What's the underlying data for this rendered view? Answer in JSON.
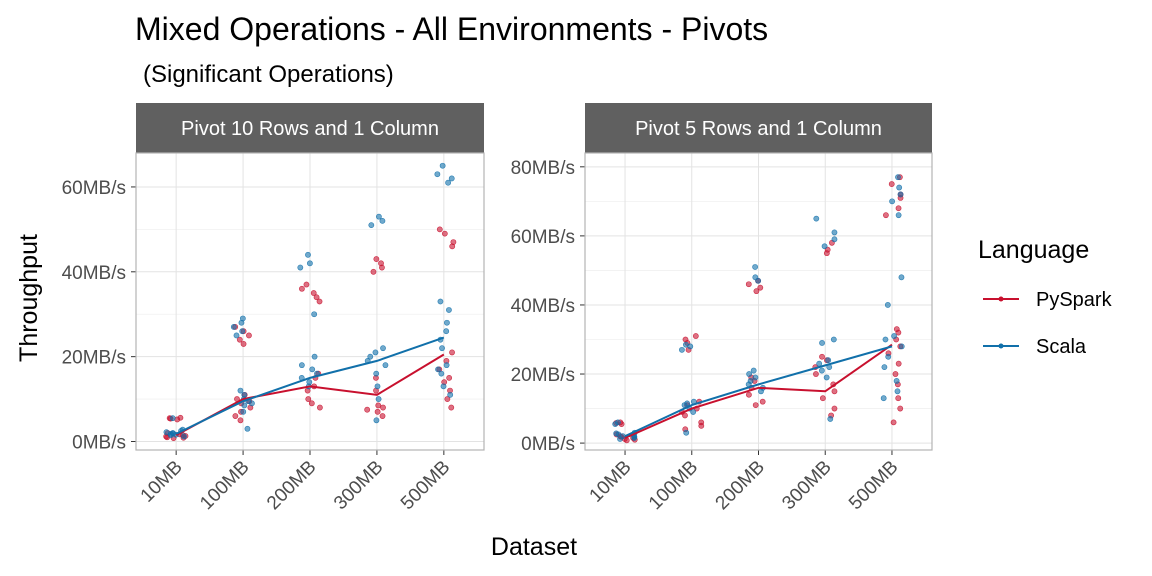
{
  "title": "Mixed Operations - All Environments - Pivots",
  "subtitle": "(Significant Operations)",
  "xlabel": "Dataset",
  "ylabel": "Throughput",
  "legend": {
    "title": "Language",
    "entries": [
      {
        "name": "PySpark",
        "color": "#C8102E"
      },
      {
        "name": "Scala",
        "color": "#1170AA"
      }
    ],
    "placement": "right"
  },
  "chart_data": [
    {
      "type": "scatter",
      "facet": "Pivot 10 Rows and 1 Column",
      "categories": [
        "10MB",
        "100MB",
        "200MB",
        "300MB",
        "500MB"
      ],
      "ylim": [
        -2,
        68
      ],
      "yticks": [
        0,
        20,
        40,
        60
      ],
      "ytick_labels": [
        "0MB/s",
        "20MB/s",
        "40MB/s",
        "60MB/s"
      ],
      "grid": true,
      "series": [
        {
          "name": "PySpark",
          "color": "#C8102E",
          "mean_line": [
            1.5,
            10,
            13,
            11,
            20.5
          ],
          "points": [
            [
              [
                1,
                1
              ],
              [
                1.5,
                1
              ],
              [
                0.8,
                1
              ],
              [
                1.2,
                1
              ],
              [
                2,
                1
              ],
              [
                5.5,
                1
              ],
              [
                5.2,
                1
              ],
              [
                5.4,
                1
              ],
              [
                1.3,
                1
              ],
              [
                0.9,
                1
              ],
              [
                1.7,
                1
              ],
              [
                5.6,
                1
              ]
            ],
            [
              [
                9,
                1
              ],
              [
                10,
                1
              ],
              [
                8,
                1
              ],
              [
                11,
                1
              ],
              [
                9.5,
                1
              ],
              [
                6,
                1
              ],
              [
                5,
                1
              ],
              [
                7,
                1
              ],
              [
                23,
                1
              ],
              [
                24,
                1
              ],
              [
                26,
                1
              ],
              [
                27,
                1
              ],
              [
                25,
                1
              ]
            ],
            [
              [
                8,
                1
              ],
              [
                9,
                1
              ],
              [
                10,
                1
              ],
              [
                12,
                1
              ],
              [
                13,
                1
              ],
              [
                15,
                1
              ],
              [
                16,
                1
              ],
              [
                33,
                1
              ],
              [
                34,
                1
              ],
              [
                36,
                1
              ],
              [
                37,
                1
              ],
              [
                35,
                1
              ]
            ],
            [
              [
                7,
                1
              ],
              [
                8,
                1
              ],
              [
                6,
                1
              ],
              [
                7.5,
                1
              ],
              [
                8.5,
                1
              ],
              [
                12,
                1
              ],
              [
                15,
                1
              ],
              [
                40,
                1
              ],
              [
                41,
                1
              ],
              [
                42,
                1
              ],
              [
                43,
                1
              ]
            ],
            [
              [
                8,
                1
              ],
              [
                10,
                1
              ],
              [
                12,
                1
              ],
              [
                14,
                1
              ],
              [
                15,
                1
              ],
              [
                17,
                1
              ],
              [
                19,
                1
              ],
              [
                21,
                1
              ],
              [
                46,
                1
              ],
              [
                47,
                1
              ],
              [
                49,
                1
              ],
              [
                50,
                1
              ]
            ]
          ]
        },
        {
          "name": "Scala",
          "color": "#1170AA",
          "mean_line": [
            1.8,
            9.5,
            15,
            19,
            24.5
          ],
          "points": [
            [
              [
                1.5,
                1
              ],
              [
                2,
                1
              ],
              [
                2.5,
                1
              ],
              [
                1.8,
                1
              ],
              [
                1.2,
                1
              ],
              [
                2.2,
                1
              ],
              [
                2.8,
                1
              ],
              [
                1.6,
                1
              ],
              [
                5.5,
                1
              ],
              [
                1.9,
                1
              ]
            ],
            [
              [
                9,
                1
              ],
              [
                10,
                1
              ],
              [
                8.5,
                1
              ],
              [
                9.5,
                1
              ],
              [
                11,
                1
              ],
              [
                12,
                1
              ],
              [
                7,
                1
              ],
              [
                3,
                1
              ],
              [
                25,
                1
              ],
              [
                26,
                1
              ],
              [
                28,
                1
              ],
              [
                29,
                1
              ],
              [
                27,
                1
              ]
            ],
            [
              [
                13,
                1
              ],
              [
                14,
                1
              ],
              [
                15,
                1
              ],
              [
                16,
                1
              ],
              [
                17,
                1
              ],
              [
                18,
                1
              ],
              [
                20,
                1
              ],
              [
                30,
                1
              ],
              [
                41,
                1
              ],
              [
                42,
                1
              ],
              [
                44,
                1
              ]
            ],
            [
              [
                5,
                1
              ],
              [
                10,
                1
              ],
              [
                13,
                1
              ],
              [
                16,
                1
              ],
              [
                18,
                1
              ],
              [
                19,
                1
              ],
              [
                20,
                1
              ],
              [
                21,
                1
              ],
              [
                22,
                1
              ],
              [
                51,
                1
              ],
              [
                52,
                1
              ],
              [
                53,
                1
              ]
            ],
            [
              [
                11,
                1
              ],
              [
                13,
                1
              ],
              [
                16,
                1
              ],
              [
                17,
                1
              ],
              [
                18,
                1
              ],
              [
                22,
                1
              ],
              [
                24,
                1
              ],
              [
                26,
                1
              ],
              [
                28,
                1
              ],
              [
                31,
                1
              ],
              [
                33,
                1
              ],
              [
                61,
                1
              ],
              [
                62,
                1
              ],
              [
                63,
                1
              ],
              [
                65,
                1
              ]
            ]
          ]
        }
      ]
    },
    {
      "type": "scatter",
      "facet": "Pivot 5 Rows and 1 Column",
      "categories": [
        "10MB",
        "100MB",
        "200MB",
        "300MB",
        "500MB"
      ],
      "ylim": [
        -2,
        84
      ],
      "yticks": [
        0,
        20,
        40,
        60,
        80
      ],
      "ytick_labels": [
        "0MB/s",
        "20MB/s",
        "40MB/s",
        "60MB/s",
        "80MB/s"
      ],
      "grid": true,
      "series": [
        {
          "name": "PySpark",
          "color": "#C8102E",
          "mean_line": [
            1.5,
            10,
            16,
            15,
            28.5
          ],
          "points": [
            [
              [
                1,
                1
              ],
              [
                1.5,
                1
              ],
              [
                2,
                1
              ],
              [
                0.8,
                1
              ],
              [
                1.2,
                1
              ],
              [
                2.5,
                1
              ],
              [
                5.5,
                1
              ],
              [
                6,
                1
              ],
              [
                5.8,
                1
              ],
              [
                1.8,
                1
              ]
            ],
            [
              [
                8,
                1
              ],
              [
                9,
                1
              ],
              [
                10,
                1
              ],
              [
                11,
                1
              ],
              [
                12,
                1
              ],
              [
                6,
                1
              ],
              [
                5,
                1
              ],
              [
                4,
                1
              ],
              [
                27,
                1
              ],
              [
                29,
                1
              ],
              [
                30,
                1
              ],
              [
                31,
                1
              ]
            ],
            [
              [
                11,
                1
              ],
              [
                12,
                1
              ],
              [
                14,
                1
              ],
              [
                16,
                1
              ],
              [
                18,
                1
              ],
              [
                19,
                1
              ],
              [
                45,
                1
              ],
              [
                46,
                1
              ],
              [
                47,
                1
              ],
              [
                44,
                1
              ]
            ],
            [
              [
                8,
                1
              ],
              [
                10,
                1
              ],
              [
                13,
                1
              ],
              [
                15,
                1
              ],
              [
                17,
                1
              ],
              [
                20,
                1
              ],
              [
                22,
                1
              ],
              [
                24,
                1
              ],
              [
                25,
                1
              ],
              [
                55,
                1
              ],
              [
                56,
                1
              ],
              [
                58,
                1
              ]
            ],
            [
              [
                6,
                1
              ],
              [
                10,
                1
              ],
              [
                13,
                1
              ],
              [
                17,
                1
              ],
              [
                20,
                1
              ],
              [
                23,
                1
              ],
              [
                26,
                1
              ],
              [
                28,
                1
              ],
              [
                30,
                1
              ],
              [
                32,
                1
              ],
              [
                33,
                1
              ],
              [
                66,
                1
              ],
              [
                68,
                1
              ],
              [
                71,
                1
              ],
              [
                72,
                1
              ],
              [
                75,
                1
              ],
              [
                77,
                1
              ]
            ]
          ]
        },
        {
          "name": "Scala",
          "color": "#1170AA",
          "mean_line": [
            2,
            11,
            17,
            22.5,
            28
          ],
          "points": [
            [
              [
                1.5,
                1
              ],
              [
                2,
                1
              ],
              [
                2.5,
                1
              ],
              [
                3,
                1
              ],
              [
                1.8,
                1
              ],
              [
                2.2,
                1
              ],
              [
                6,
                1
              ],
              [
                5.5,
                1
              ],
              [
                1.2,
                1
              ],
              [
                2.8,
                1
              ]
            ],
            [
              [
                10,
                1
              ],
              [
                11,
                1
              ],
              [
                12,
                1
              ],
              [
                9,
                1
              ],
              [
                11.5,
                1
              ],
              [
                3,
                1
              ],
              [
                27,
                1
              ],
              [
                28,
                1
              ],
              [
                28.5,
                1
              ]
            ],
            [
              [
                15,
                1
              ],
              [
                16,
                1
              ],
              [
                17,
                1
              ],
              [
                18,
                1
              ],
              [
                19,
                1
              ],
              [
                20,
                1
              ],
              [
                21,
                1
              ],
              [
                47,
                1
              ],
              [
                48,
                1
              ],
              [
                51,
                1
              ]
            ],
            [
              [
                7,
                1
              ],
              [
                19,
                1
              ],
              [
                21,
                1
              ],
              [
                22,
                1
              ],
              [
                23,
                1
              ],
              [
                24,
                1
              ],
              [
                29,
                1
              ],
              [
                30,
                1
              ],
              [
                57,
                1
              ],
              [
                59,
                1
              ],
              [
                61,
                1
              ],
              [
                65,
                1
              ]
            ],
            [
              [
                13,
                1
              ],
              [
                15,
                1
              ],
              [
                18,
                1
              ],
              [
                22,
                1
              ],
              [
                25,
                1
              ],
              [
                28,
                1
              ],
              [
                30,
                1
              ],
              [
                31,
                1
              ],
              [
                40,
                1
              ],
              [
                48,
                1
              ],
              [
                66,
                1
              ],
              [
                70,
                1
              ],
              [
                72,
                1
              ],
              [
                74,
                1
              ],
              [
                77,
                1
              ]
            ]
          ]
        }
      ]
    }
  ]
}
